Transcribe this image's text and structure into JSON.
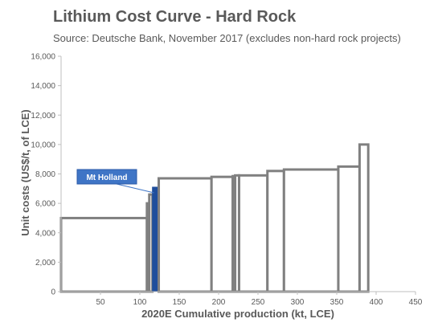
{
  "chart_data": {
    "type": "bar",
    "title": "Lithium Cost Curve - Hard Rock",
    "subtitle": "Source: Deutsche Bank, November 2017 (excludes non-hard rock projects)",
    "xlabel": "2020E Cumulative production (kt, LCE)",
    "ylabel": "Unit costs (US$/t, of LCE)",
    "xlim": [
      0,
      450
    ],
    "ylim": [
      0,
      16000
    ],
    "xticks": [
      50,
      100,
      150,
      200,
      250,
      300,
      350,
      400,
      450
    ],
    "yticks": [
      "0",
      "2,000",
      "4,000",
      "6,000",
      "8,000",
      "10,000",
      "12,000",
      "14,000",
      "16,000"
    ],
    "ytick_values": [
      0,
      2000,
      4000,
      6000,
      8000,
      10000,
      12000,
      14000,
      16000
    ],
    "bars": [
      {
        "x0": 0,
        "x1": 109,
        "value": 5000
      },
      {
        "x0": 109,
        "x1": 112,
        "value": 6000
      },
      {
        "x0": 112,
        "x1": 116,
        "value": 6600
      },
      {
        "x0": 116,
        "x1": 124,
        "value": 7100,
        "highlight": true
      },
      {
        "x0": 124,
        "x1": 191,
        "value": 7700
      },
      {
        "x0": 191,
        "x1": 218,
        "value": 7800
      },
      {
        "x0": 218,
        "x1": 221,
        "value": 7850
      },
      {
        "x0": 221,
        "x1": 226,
        "value": 7900
      },
      {
        "x0": 226,
        "x1": 262,
        "value": 7900
      },
      {
        "x0": 262,
        "x1": 283,
        "value": 8200
      },
      {
        "x0": 283,
        "x1": 352,
        "value": 8300
      },
      {
        "x0": 352,
        "x1": 379,
        "value": 8500
      },
      {
        "x0": 379,
        "x1": 390,
        "value": 10000
      }
    ],
    "annotation": {
      "label": "Mt Holland",
      "points_to_bar": 3
    },
    "colors": {
      "bar_stroke": "#808080",
      "highlight_fill": "#1f4e9c",
      "callout_fill": "#3f75c6",
      "text": "#595959"
    }
  }
}
